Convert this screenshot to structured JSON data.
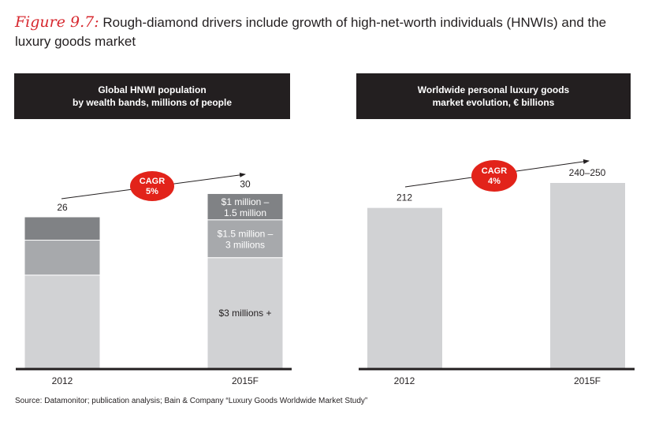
{
  "title": {
    "figure_label": "Figure 9.7:",
    "text": " Rough-diamond drivers include growth of  high-net-worth individuals (HNWIs) and the luxury goods market"
  },
  "source": "Source:  Datamonitor; publication analysis; Bain & Company “Luxury Goods Worldwide Market Study”",
  "chart_data": [
    {
      "type": "bar",
      "stacked": true,
      "title_line1": "Global HNWI population",
      "title_line2": "by wealth bands, millions of people",
      "categories": [
        "2012",
        "2015F"
      ],
      "series": [
        {
          "name": "$3 millions +",
          "values": [
            16,
            19
          ],
          "color": "#d1d2d4"
        },
        {
          "name": "$1.5 million – 3 millions",
          "label_lines": [
            "$1.5 million –",
            "3 millions"
          ],
          "values": [
            6,
            6.5
          ],
          "color": "#a7a9ac"
        },
        {
          "name": "$1 million – 1.5 million",
          "label_lines": [
            "$1 million –",
            "1.5 million"
          ],
          "values": [
            4,
            4.5
          ],
          "color": "#808285"
        }
      ],
      "totals": [
        "26",
        "30"
      ],
      "cagr": {
        "line1": "CAGR",
        "line2": "5%"
      },
      "ylim": [
        0,
        30
      ]
    },
    {
      "type": "bar",
      "title_line1": "Worldwide personal luxury goods",
      "title_line2": "market evolution, € billions",
      "categories": [
        "2012",
        "2015F"
      ],
      "values": [
        212,
        245
      ],
      "value_labels": [
        "212",
        "240–250"
      ],
      "color": "#d1d2d4",
      "cagr": {
        "line1": "CAGR",
        "line2": "4%"
      },
      "ylim": [
        0,
        245
      ]
    }
  ],
  "colors": {
    "accent": "#e2231a",
    "header": "#231f20"
  }
}
